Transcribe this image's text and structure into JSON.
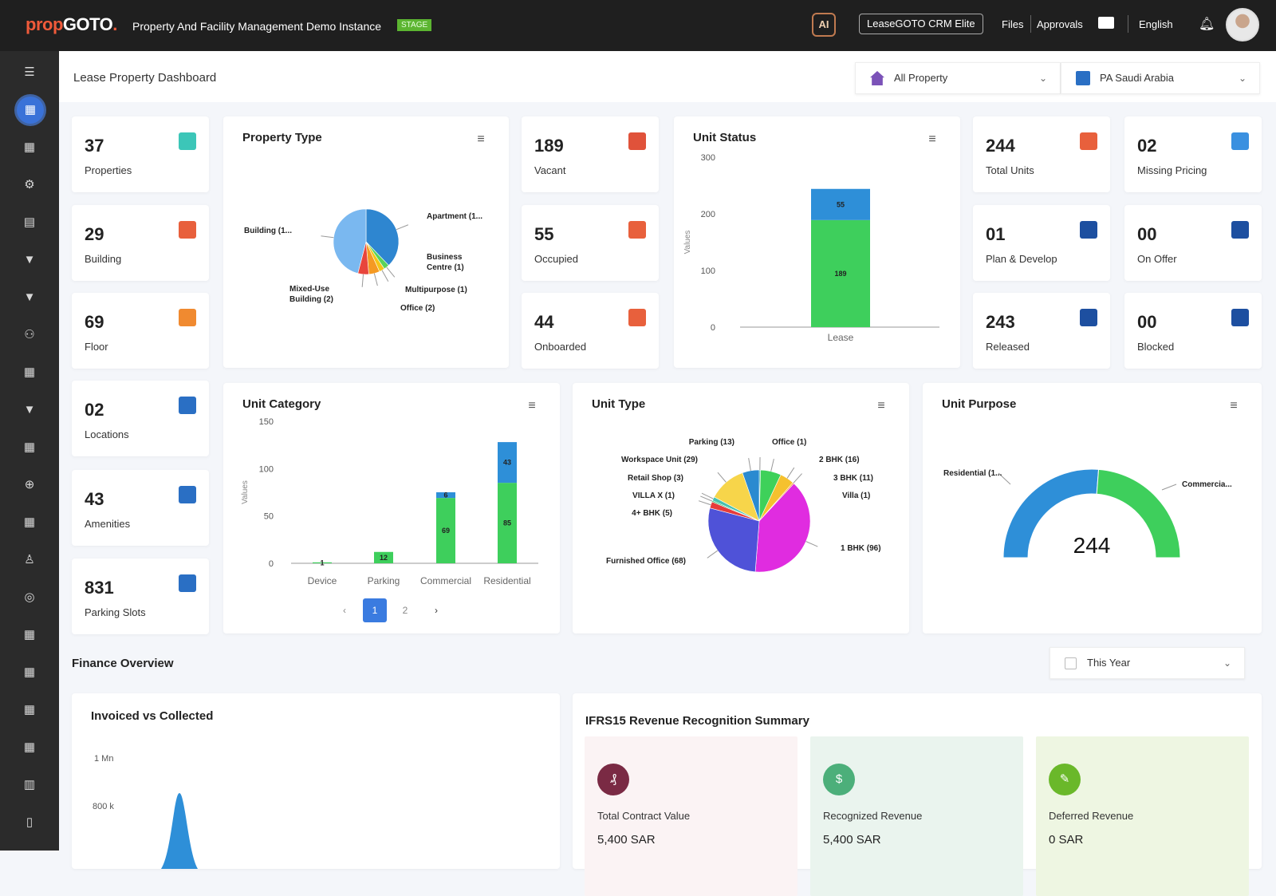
{
  "header": {
    "logo_prop": "prop",
    "logo_goto": "GOTO",
    "logo_dot": ".",
    "app_title": "Property And Facility Management Demo Instance",
    "badge": "STAGE",
    "ai_label": "AI",
    "crm_button": "LeaseGOTO CRM Elite",
    "files": "Files",
    "approvals": "Approvals",
    "language": "English"
  },
  "page": {
    "title": "Lease Property Dashboard",
    "property_filter": "All Property",
    "region_filter": "PA Saudi Arabia"
  },
  "sidebar": {
    "items": [
      "menu",
      "dashboard",
      "grid",
      "settings",
      "document",
      "filter",
      "filter",
      "users",
      "grid",
      "filter",
      "grid",
      "support",
      "grid",
      "person",
      "circle",
      "grid",
      "grid",
      "grid",
      "grid",
      "table",
      "file"
    ],
    "active_index": 1
  },
  "kpis": [
    {
      "value": "37",
      "label": "Properties",
      "color": "#3cc6b8",
      "icon": "document-icon"
    },
    {
      "value": "29",
      "label": "Building",
      "color": "#e8603c",
      "icon": "building-icon"
    },
    {
      "value": "69",
      "label": "Floor",
      "color": "#f08a30",
      "icon": "house-icon"
    },
    {
      "value": "02",
      "label": "Locations",
      "color": "#2a6fc4",
      "icon": "store-icon"
    },
    {
      "value": "43",
      "label": "Amenities",
      "color": "#2a6fc4",
      "icon": "store-icon"
    },
    {
      "value": "831",
      "label": "Parking Slots",
      "color": "#2a6fc4",
      "icon": "store-icon"
    },
    {
      "value": "189",
      "label": "Vacant",
      "color": "#e0523a",
      "icon": "shop-icon"
    },
    {
      "value": "55",
      "label": "Occupied",
      "color": "#e8603c",
      "icon": "house-check-icon"
    },
    {
      "value": "44",
      "label": "Onboarded",
      "color": "#e8603c",
      "icon": "house-check-icon"
    },
    {
      "value": "244",
      "label": "Total Units",
      "color": "#e8603c",
      "icon": "house-icon"
    },
    {
      "value": "01",
      "label": "Plan & Develop",
      "color": "#1d4fa0",
      "icon": "house-lock-icon"
    },
    {
      "value": "243",
      "label": "Released",
      "color": "#1d4fa0",
      "icon": "house-lock-icon"
    },
    {
      "value": "02",
      "label": "Missing Pricing",
      "color": "#3a90e0",
      "icon": "tag-icon"
    },
    {
      "value": "00",
      "label": "On Offer",
      "color": "#1d4fa0",
      "icon": "house-lock-icon"
    },
    {
      "value": "00",
      "label": "Blocked",
      "color": "#1d4fa0",
      "icon": "house-lock-icon"
    }
  ],
  "chart_data": [
    {
      "id": "property_type",
      "type": "pie",
      "title": "Property Type",
      "slices": [
        {
          "label": "Apartment (1...",
          "value": 14,
          "color": "#2e86d0"
        },
        {
          "label": "Business Centre (1)",
          "value": 1,
          "color": "#5ad35a"
        },
        {
          "label": "Multipurpose (1)",
          "value": 1,
          "color": "#f5c518"
        },
        {
          "label": "Office (2)",
          "value": 2,
          "color": "#f59a23"
        },
        {
          "label": "Mixed-Use Building (2)",
          "value": 2,
          "color": "#e8453c"
        },
        {
          "label": "Building (1...",
          "value": 17,
          "color": "#7ab8f0"
        }
      ]
    },
    {
      "id": "unit_status",
      "type": "bar",
      "stacked": true,
      "title": "Unit Status",
      "ylabel": "Values",
      "ylim": [
        0,
        300
      ],
      "yticks": [
        "0",
        "100",
        "200",
        "300"
      ],
      "categories": [
        "Lease"
      ],
      "series": [
        {
          "values": [
            0
          ],
          "color": "#2e8fd8",
          "labels": [
            "0"
          ]
        },
        {
          "values": [
            189
          ],
          "color": "#3ecf5c",
          "labels": [
            "189"
          ]
        },
        {
          "values": [
            55
          ],
          "color": "#2e8fd8",
          "labels": [
            "55"
          ]
        }
      ]
    },
    {
      "id": "unit_category",
      "type": "bar",
      "stacked": true,
      "title": "Unit Category",
      "ylabel": "Values",
      "ylim": [
        0,
        150
      ],
      "yticks": [
        "0",
        "50",
        "100",
        "150"
      ],
      "categories": [
        "Device",
        "Parking",
        "Commercial",
        "Residential"
      ],
      "series": [
        {
          "values": [
            0,
            0,
            0,
            0
          ],
          "color": "#3ecf5c",
          "labels": [
            "",
            "",
            "0",
            "0"
          ]
        },
        {
          "values": [
            1,
            12,
            69,
            85
          ],
          "color": "#3ecf5c",
          "labels": [
            "1",
            "12",
            "69",
            "85"
          ]
        },
        {
          "values": [
            0,
            0,
            6,
            43
          ],
          "color": "#2e8fd8",
          "labels": [
            "",
            "",
            "6",
            "43"
          ]
        }
      ],
      "pagination": {
        "prev": "‹",
        "pages": [
          "1",
          "2"
        ],
        "current": "1",
        "next": "›"
      }
    },
    {
      "id": "unit_type",
      "type": "pie",
      "title": "Unit Type",
      "slices": [
        {
          "label": "Office (1)",
          "value": 1,
          "color": "#1aa3a3"
        },
        {
          "label": "2 BHK (16)",
          "value": 16,
          "color": "#3ed15a"
        },
        {
          "label": "3 BHK (11)",
          "value": 11,
          "color": "#f5c12e"
        },
        {
          "label": "Villa (1)",
          "value": 1,
          "color": "#f59a23"
        },
        {
          "label": "1 BHK (96)",
          "value": 96,
          "color": "#e02ce0"
        },
        {
          "label": "Furnished Office (68)",
          "value": 68,
          "color": "#4f52d8"
        },
        {
          "label": "4+ BHK (5)",
          "value": 5,
          "color": "#e63b3b"
        },
        {
          "label": "VILLA X (1)",
          "value": 1,
          "color": "#2fb86a"
        },
        {
          "label": "Retail Shop (3)",
          "value": 3,
          "color": "#45c0b0"
        },
        {
          "label": "Workspace Unit (29)",
          "value": 29,
          "color": "#f7d54a"
        },
        {
          "label": "Parking (13)",
          "value": 13,
          "color": "#2a8ad0"
        }
      ]
    },
    {
      "id": "unit_purpose",
      "type": "gauge",
      "title": "Unit Purpose",
      "total": "244",
      "segments": [
        {
          "label": "Residential (1...",
          "value": 128,
          "color": "#2e8fd8"
        },
        {
          "label": "Commercia...",
          "value": 116,
          "color": "#3ecf5c"
        }
      ]
    },
    {
      "id": "invoiced_vs_collected",
      "type": "area",
      "title": "Invoiced vs Collected",
      "yticks": [
        "1 Mn",
        "800 k"
      ],
      "color": "#2e8fd8"
    }
  ],
  "finance": {
    "title": "Finance Overview",
    "period": "This Year",
    "ifrs_title": "IFRS15 Revenue Recognition Summary",
    "cards": [
      {
        "label": "Total Contract Value",
        "value": "5,400 SAR",
        "bg": "#fbf3f4",
        "color": "#7a2a44",
        "icon": "contract-icon",
        "glyph": "₰"
      },
      {
        "label": "Recognized Revenue",
        "value": "5,400 SAR",
        "bg": "#eaf4ee",
        "color": "#4caf7a",
        "icon": "money-bag-icon",
        "glyph": "$"
      },
      {
        "label": "Deferred Revenue",
        "value": "0 SAR",
        "bg": "#eef6e2",
        "color": "#6ab82a",
        "icon": "deferred-icon",
        "glyph": "✎"
      }
    ]
  }
}
